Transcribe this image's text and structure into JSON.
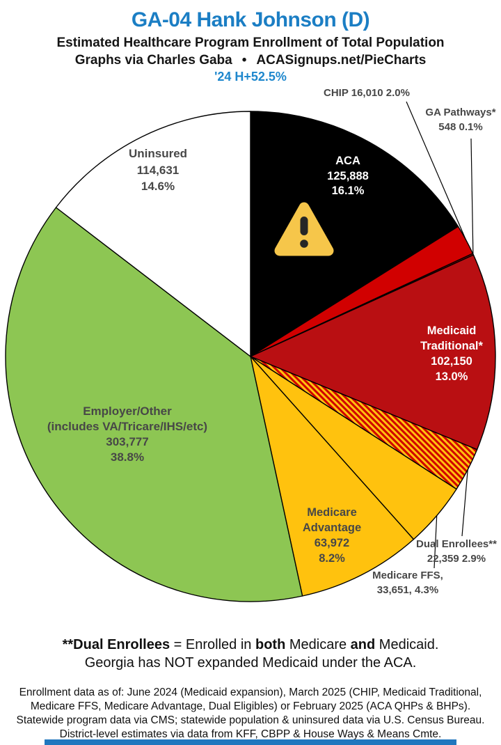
{
  "colors": {
    "title_blue": "#1b7ec4",
    "tagline_blue": "#1e87cd",
    "label_gray": "#474747",
    "gold": "#ffc20e",
    "green": "#8dc653",
    "chip_red": "#d10000",
    "medicaid_red": "#b90f12",
    "bottom_bar_blue": "#2077be"
  },
  "header": {
    "title": "GA-04 Hank Johnson (D)",
    "subtitle1": "Estimated Healthcare Program Enrollment of Total Population",
    "subtitle2_left": "Graphs via Charles Gaba",
    "subtitle2_bullet": "•",
    "subtitle2_right": "ACASignups.net/PieCharts",
    "tagline": "'24 H+52.5%"
  },
  "chart_data": {
    "type": "pie",
    "title": "GA-04 Hank Johnson (D) — Estimated Healthcare Program Enrollment of Total Population",
    "direction": "clockwise",
    "start_angle": "12 o'clock",
    "slices": [
      {
        "id": "aca",
        "name": "ACA",
        "enrollment": 125888,
        "pct": 16.1,
        "color": "#000000",
        "label_lines": [
          "ACA",
          "125,888",
          "16.1%"
        ]
      },
      {
        "id": "chip",
        "name": "CHIP",
        "enrollment": 16010,
        "pct": 2.0,
        "color": "#d10000",
        "label_lines": [
          "CHIP 16,010 2.0%"
        ]
      },
      {
        "id": "ga-pathways",
        "name": "GA Pathways*",
        "enrollment": 548,
        "pct": 0.1,
        "color": "#9e0000",
        "label_lines": [
          "GA Pathways*",
          "548 0.1%"
        ]
      },
      {
        "id": "medicaid-traditional",
        "name": "Medicaid Traditional*",
        "enrollment": 102150,
        "pct": 13.0,
        "color": "#b90f12",
        "label_lines": [
          "Medicaid",
          "Traditional*",
          "102,150",
          "13.0%"
        ]
      },
      {
        "id": "dual-enrollees",
        "name": "Dual Enrollees**",
        "enrollment": 22359,
        "pct": 2.9,
        "color": "#d10000",
        "hatch": true,
        "hatch_colors": [
          "#d10000",
          "#ffc20e"
        ],
        "label_lines": [
          "Dual Enrollees**",
          "22,359 2.9%"
        ]
      },
      {
        "id": "medicare-ffs",
        "name": "Medicare FFS",
        "enrollment": 33651,
        "pct": 4.3,
        "color": "#ffc20e",
        "label_lines": [
          "Medicare FFS,",
          "33,651, 4.3%"
        ]
      },
      {
        "id": "medicare-advantage",
        "name": "Medicare Advantage",
        "enrollment": 63972,
        "pct": 8.2,
        "color": "#ffc20e",
        "label_lines": [
          "Medicare",
          "Advantage",
          "63,972",
          "8.2%"
        ]
      },
      {
        "id": "employer-other",
        "name": "Employer/Other",
        "enrollment": 303777,
        "pct": 38.8,
        "color": "#8dc653",
        "label_lines": [
          "Employer/Other",
          "(includes VA/Tricare/IHS/etc)",
          "303,777",
          "38.8%"
        ]
      },
      {
        "id": "uninsured",
        "name": "Uninsured",
        "enrollment": 114631,
        "pct": 14.6,
        "color": "#ffffff",
        "label_lines": [
          "Uninsured",
          "114,631",
          "14.6%"
        ]
      }
    ]
  },
  "notes": {
    "line1_parts": [
      {
        "t": "**Dual Enrollees"
      },
      {
        "t": " = Enrolled in "
      },
      {
        "t": "both"
      },
      {
        "t": " Medicare "
      },
      {
        "t": "and"
      },
      {
        "t": " Medicaid."
      }
    ],
    "line2": "Georgia has NOT expanded Medicaid under the ACA."
  },
  "footer": {
    "lines": [
      "Enrollment data as of: June 2024 (Medicaid expansion), March 2025 (CHIP, Medicaid Traditional,",
      "Medicare FFS, Medicare Advantage, Dual Eligibles) or February 2025 (ACA QHPs & BHPs).",
      "Statewide program data via CMS; statewide population & uninsured data via U.S. Census Bureau.",
      "District-level estimates via data from KFF, CBPP & House Ways & Means Cmte."
    ]
  }
}
